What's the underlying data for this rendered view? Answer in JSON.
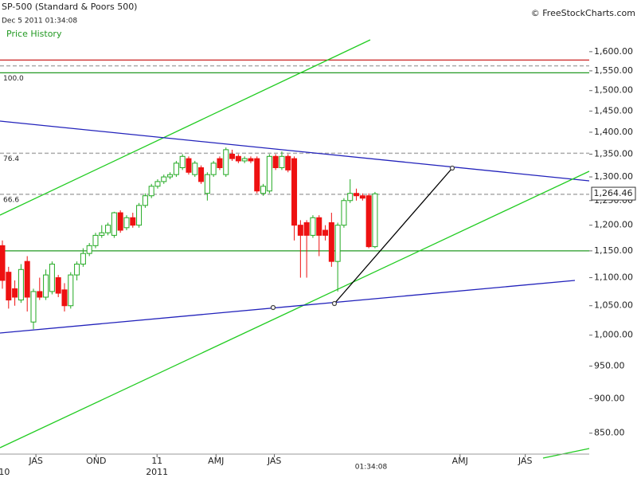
{
  "chart_data": {
    "type": "candlestick",
    "title": "SP-500 (Standard & Poors 500)",
    "subtitle": "Dec 5 2011 01:34:08",
    "source": "© FreeStockCharts.com",
    "panel_label": "Price History",
    "cursor_time": "01:34:08",
    "log_scale": true,
    "up_color": "#22aa22",
    "down_color": "#ee1111",
    "x": [
      0,
      1,
      2,
      3,
      4,
      5,
      6,
      7,
      8,
      9,
      10,
      11,
      12,
      13,
      14,
      15,
      16,
      17,
      18,
      19,
      20,
      21,
      22,
      23,
      24,
      25,
      26,
      27,
      28,
      29,
      30,
      31,
      32,
      33,
      34,
      35,
      36,
      37,
      38,
      39,
      40,
      41,
      42,
      43,
      44,
      45,
      46,
      47,
      48,
      49,
      50,
      51,
      52,
      53,
      54,
      55,
      56,
      57,
      58,
      59,
      60
    ],
    "open": [
      1160,
      1110,
      1080,
      1060,
      1130,
      1022,
      1075,
      1065,
      1075,
      1100,
      1078,
      1050,
      1105,
      1125,
      1145,
      1160,
      1180,
      1185,
      1180,
      1225,
      1195,
      1215,
      1200,
      1240,
      1260,
      1280,
      1290,
      1300,
      1305,
      1320,
      1340,
      1305,
      1320,
      1265,
      1305,
      1340,
      1305,
      1350,
      1345,
      1335,
      1340,
      1340,
      1265,
      1270,
      1345,
      1320,
      1345,
      1340,
      1200,
      1205,
      1180,
      1215,
      1190,
      1205,
      1130,
      1200,
      1250,
      1265,
      1260,
      1260,
      1158
    ],
    "high": [
      1170,
      1120,
      1095,
      1125,
      1140,
      1080,
      1100,
      1115,
      1130,
      1105,
      1090,
      1110,
      1130,
      1155,
      1165,
      1185,
      1200,
      1205,
      1227,
      1230,
      1220,
      1225,
      1245,
      1265,
      1285,
      1295,
      1305,
      1310,
      1335,
      1350,
      1345,
      1335,
      1325,
      1310,
      1335,
      1345,
      1365,
      1360,
      1350,
      1345,
      1345,
      1345,
      1285,
      1350,
      1350,
      1356,
      1350,
      1345,
      1210,
      1210,
      1220,
      1220,
      1200,
      1225,
      1205,
      1255,
      1295,
      1275,
      1265,
      1265,
      1268
    ],
    "low": [
      1080,
      1045,
      1050,
      1055,
      1040,
      1010,
      1060,
      1060,
      1070,
      1065,
      1040,
      1045,
      1095,
      1120,
      1140,
      1155,
      1175,
      1180,
      1175,
      1185,
      1190,
      1195,
      1195,
      1235,
      1255,
      1275,
      1285,
      1295,
      1300,
      1315,
      1305,
      1300,
      1285,
      1250,
      1300,
      1315,
      1300,
      1335,
      1330,
      1330,
      1330,
      1265,
      1260,
      1265,
      1315,
      1315,
      1310,
      1170,
      1100,
      1100,
      1175,
      1140,
      1170,
      1120,
      1075,
      1195,
      1245,
      1250,
      1250,
      1155,
      1155
    ],
    "close": [
      1095,
      1060,
      1065,
      1115,
      1065,
      1075,
      1065,
      1105,
      1125,
      1072,
      1050,
      1105,
      1125,
      1145,
      1160,
      1180,
      1185,
      1200,
      1225,
      1190,
      1215,
      1200,
      1240,
      1260,
      1280,
      1290,
      1300,
      1305,
      1330,
      1345,
      1310,
      1330,
      1290,
      1305,
      1330,
      1320,
      1360,
      1340,
      1335,
      1340,
      1335,
      1270,
      1280,
      1345,
      1320,
      1345,
      1315,
      1200,
      1180,
      1180,
      1215,
      1180,
      1180,
      1130,
      1200,
      1250,
      1265,
      1260,
      1255,
      1158,
      1264
    ],
    "last_price": {
      "value": 1264.46,
      "label": "1,264.46"
    },
    "levels": [
      {
        "value": 1578,
        "color": "#cc2222"
      },
      {
        "value": 1563,
        "color": "#aaaaaa",
        "dashed": true
      },
      {
        "value": 1545,
        "color": "#229922",
        "label": "100.0"
      },
      {
        "value": 1352,
        "color": "#aaaaaa",
        "dashed": true,
        "label": "76.4"
      },
      {
        "value": 1263,
        "color": "#aaaaaa",
        "dashed": true,
        "label": "66.6"
      },
      {
        "value": 1150,
        "color": "#229922"
      }
    ],
    "xlim": [
      -0.385,
      94.5
    ],
    "xticks": [
      {
        "value": 5.4,
        "label": "JAS"
      },
      {
        "value": 15.1,
        "label": "OND"
      },
      {
        "value": 24.9,
        "label": "11"
      },
      {
        "value": 34.4,
        "label": "AMJ"
      },
      {
        "value": 43.8,
        "label": "JAS"
      },
      {
        "value": 73.7,
        "label": "AMJ"
      },
      {
        "value": 84.2,
        "label": "JAS"
      }
    ],
    "year_labels": [
      {
        "value": 0.3,
        "label": "10"
      },
      {
        "value": 24.9,
        "label": "2011"
      }
    ],
    "ylim": [
      821,
      1621
    ],
    "yticks": [
      {
        "value": 850,
        "label": "850.00"
      },
      {
        "value": 900,
        "label": "900.00"
      },
      {
        "value": 950,
        "label": "950.00"
      },
      {
        "value": 1000,
        "label": "1,000.00"
      },
      {
        "value": 1050,
        "label": "1,050.00"
      },
      {
        "value": 1100,
        "label": "1,100.00"
      },
      {
        "value": 1150,
        "label": "1,150.00"
      },
      {
        "value": 1200,
        "label": "1,200.00"
      },
      {
        "value": 1250,
        "label": "1,250.00"
      },
      {
        "value": 1300,
        "label": "1,300.00"
      },
      {
        "value": 1350,
        "label": "1,350.00"
      },
      {
        "value": 1400,
        "label": "1,400.00"
      },
      {
        "value": 1450,
        "label": "1,450.00"
      },
      {
        "value": 1500,
        "label": "1,500.00"
      },
      {
        "value": 1550,
        "label": "1,550.00"
      },
      {
        "value": 1600,
        "label": "1,600.00"
      }
    ]
  }
}
